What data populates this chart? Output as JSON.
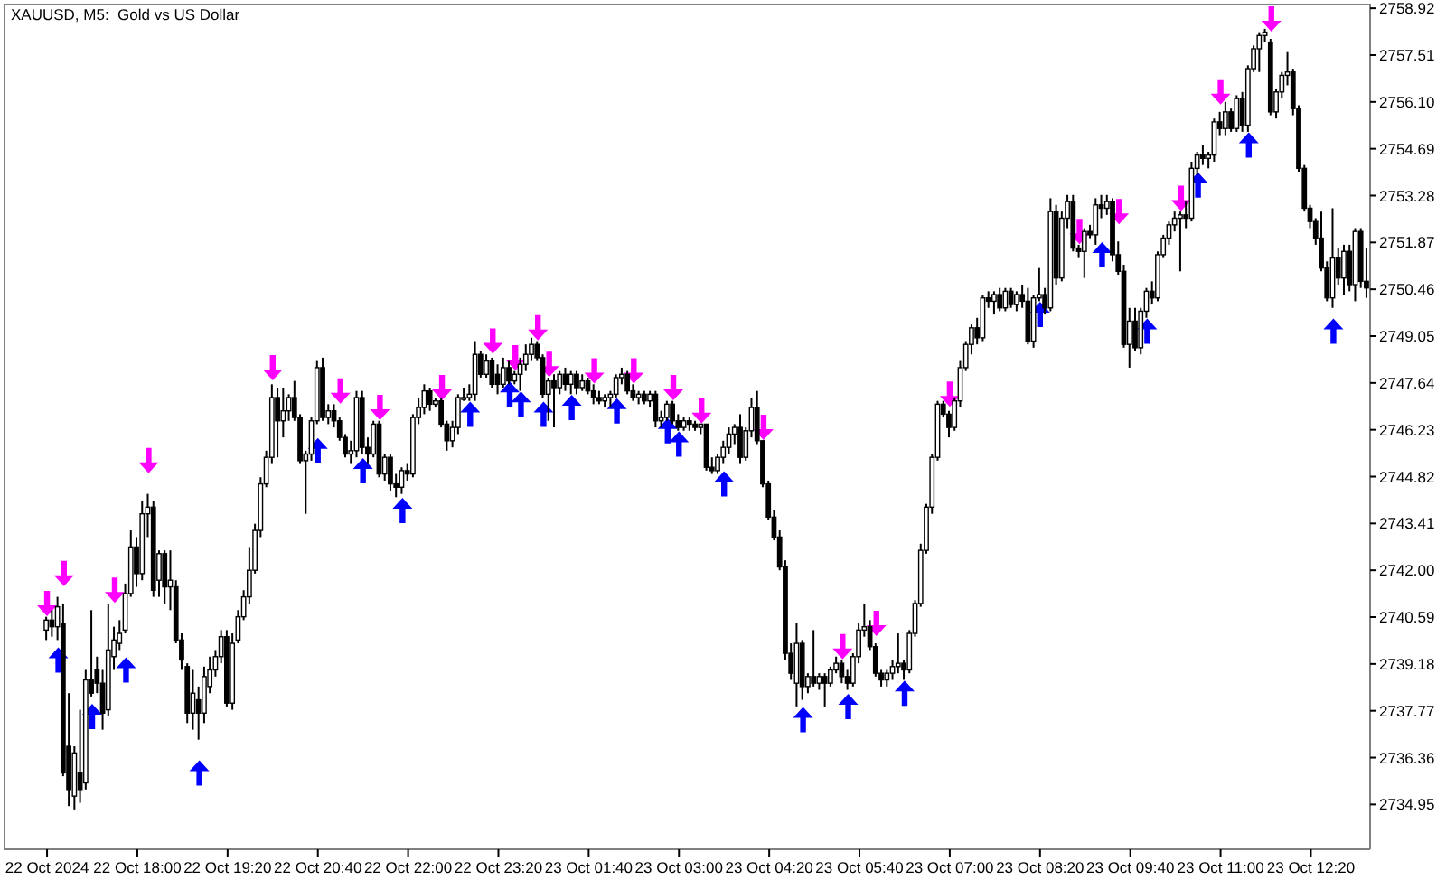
{
  "chart_data": {
    "type": "candlestick",
    "title": "XAUUSD, M5:  Gold vs US Dollar",
    "color": "#000000",
    "categories": [
      "22 Oct 2024",
      null,
      null,
      null,
      null,
      null,
      null,
      null,
      null,
      null,
      null,
      null,
      null,
      null,
      null,
      null,
      "22 Oct 18:00",
      null,
      null,
      null,
      null,
      null,
      null,
      null,
      null,
      null,
      null,
      null,
      null,
      null,
      null,
      null,
      "22 Oct 19:20",
      null,
      null,
      null,
      null,
      null,
      null,
      null,
      null,
      null,
      null,
      null,
      null,
      null,
      null,
      null,
      "22 Oct 20:40",
      null,
      null,
      null,
      null,
      null,
      null,
      null,
      null,
      null,
      null,
      null,
      null,
      null,
      null,
      null,
      "22 Oct 22:00",
      null,
      null,
      null,
      null,
      null,
      null,
      null,
      null,
      null,
      null,
      null,
      null,
      null,
      null,
      null,
      "22 Oct 23:20",
      null,
      null,
      null,
      null,
      null,
      null,
      null,
      null,
      null,
      null,
      null,
      null,
      null,
      null,
      null,
      "23 Oct 01:40",
      null,
      null,
      null,
      null,
      null,
      null,
      null,
      null,
      null,
      null,
      null,
      null,
      null,
      null,
      null,
      "23 Oct 03:00",
      null,
      null,
      null,
      null,
      null,
      null,
      null,
      null,
      null,
      null,
      null,
      null,
      null,
      null,
      null,
      "23 Oct 04:20",
      null,
      null,
      null,
      null,
      null,
      null,
      null,
      null,
      null,
      null,
      null,
      null,
      null,
      null,
      null,
      "23 Oct 05:40",
      null,
      null,
      null,
      null,
      null,
      null,
      null,
      null,
      null,
      null,
      null,
      null,
      null,
      null,
      null,
      "23 Oct 07:00",
      null,
      null,
      null,
      null,
      null,
      null,
      null,
      null,
      null,
      null,
      null,
      null,
      null,
      null,
      null,
      "23 Oct 08:20",
      null,
      null,
      null,
      null,
      null,
      null,
      null,
      null,
      null,
      null,
      null,
      null,
      null,
      null,
      null,
      "23 Oct 09:40",
      null,
      null,
      null,
      null,
      null,
      null,
      null,
      null,
      null,
      null,
      null,
      null,
      null,
      null,
      null,
      "23 Oct 11:00",
      null,
      null,
      null,
      null,
      null,
      null,
      null,
      null,
      null,
      null,
      null,
      null,
      null,
      null,
      null,
      "23 Oct 12:20",
      null,
      null,
      null,
      null,
      null,
      null,
      null,
      null,
      null,
      null
    ],
    "ohlc": [
      [
        2740.2,
        2740.6,
        2739.9,
        2740.5
      ],
      [
        2740.5,
        2740.8,
        2740.0,
        2740.3
      ],
      [
        2740.3,
        2741.2,
        2739.9,
        2740.9
      ],
      [
        2740.4,
        2741.0,
        2735.8,
        2735.9
      ],
      [
        2736.7,
        2738.3,
        2734.9,
        2735.4
      ],
      [
        2735.2,
        2736.7,
        2734.8,
        2736.5
      ],
      [
        2735.9,
        2737.8,
        2735.0,
        2735.4
      ],
      [
        2735.6,
        2739.0,
        2735.4,
        2738.7
      ],
      [
        2738.7,
        2740.8,
        2738.2,
        2738.3
      ],
      [
        2739.0,
        2739.4,
        2738.3,
        2738.6
      ],
      [
        2738.6,
        2739.0,
        2737.2,
        2737.7
      ],
      [
        2737.8,
        2741.0,
        2737.6,
        2739.6
      ],
      [
        2739.4,
        2740.3,
        2739.0,
        2739.9
      ],
      [
        2739.8,
        2740.5,
        2739.6,
        2740.1
      ],
      [
        2740.2,
        2741.6,
        2740.1,
        2741.3
      ],
      [
        2741.3,
        2743.2,
        2741.2,
        2742.7
      ],
      [
        2742.7,
        2743.0,
        2741.5,
        2741.9
      ],
      [
        2741.9,
        2744.1,
        2741.7,
        2743.7
      ],
      [
        2743.7,
        2744.3,
        2743.0,
        2743.9
      ],
      [
        2743.9,
        2744.1,
        2741.2,
        2741.4
      ],
      [
        2741.7,
        2742.6,
        2741.2,
        2742.5
      ],
      [
        2742.5,
        2742.6,
        2741.0,
        2741.5
      ],
      [
        2741.5,
        2742.6,
        2740.8,
        2741.7
      ],
      [
        2741.5,
        2741.7,
        2739.8,
        2739.9
      ],
      [
        2739.9,
        2740.1,
        2739.0,
        2739.3
      ],
      [
        2739.1,
        2739.2,
        2737.4,
        2737.7
      ],
      [
        2737.7,
        2739.0,
        2737.2,
        2738.3
      ],
      [
        2738.1,
        2738.5,
        2736.9,
        2737.7
      ],
      [
        2737.7,
        2739.1,
        2737.4,
        2738.8
      ],
      [
        2738.5,
        2739.4,
        2738.3,
        2739.0
      ],
      [
        2739.0,
        2739.6,
        2738.8,
        2739.4
      ],
      [
        2739.4,
        2740.2,
        2739.2,
        2740.0
      ],
      [
        2740.0,
        2740.2,
        2737.9,
        2738.0
      ],
      [
        2738.0,
        2740.1,
        2737.8,
        2739.8
      ],
      [
        2739.9,
        2740.8,
        2739.8,
        2740.6
      ],
      [
        2740.6,
        2741.4,
        2740.5,
        2741.2
      ],
      [
        2741.2,
        2742.7,
        2741.0,
        2742.0
      ],
      [
        2742.0,
        2743.4,
        2741.9,
        2743.2
      ],
      [
        2743.2,
        2744.8,
        2743.0,
        2744.6
      ],
      [
        2744.6,
        2745.6,
        2744.5,
        2745.4
      ],
      [
        2745.4,
        2747.6,
        2745.2,
        2747.2
      ],
      [
        2747.2,
        2747.5,
        2745.4,
        2746.5
      ],
      [
        2746.5,
        2747.5,
        2746.0,
        2746.8
      ],
      [
        2746.8,
        2747.3,
        2746.5,
        2747.2
      ],
      [
        2747.2,
        2747.7,
        2746.5,
        2746.6
      ],
      [
        2746.6,
        2746.7,
        2745.2,
        2745.3
      ],
      [
        2745.3,
        2745.6,
        2743.7,
        2745.5
      ],
      [
        2745.5,
        2746.6,
        2745.3,
        2746.5
      ],
      [
        2746.5,
        2748.3,
        2746.4,
        2748.1
      ],
      [
        2748.1,
        2748.4,
        2746.5,
        2746.6
      ],
      [
        2746.6,
        2747.0,
        2746.4,
        2746.8
      ],
      [
        2746.8,
        2747.0,
        2746.3,
        2746.5
      ],
      [
        2746.5,
        2746.6,
        2745.9,
        2746.0
      ],
      [
        2746.0,
        2746.1,
        2745.4,
        2745.5
      ],
      [
        2745.5,
        2745.9,
        2745.2,
        2745.6
      ],
      [
        2745.6,
        2747.4,
        2745.4,
        2747.2
      ],
      [
        2747.2,
        2747.4,
        2745.5,
        2745.7
      ],
      [
        2745.7,
        2746.0,
        2745.2,
        2745.5
      ],
      [
        2745.5,
        2746.5,
        2745.4,
        2746.4
      ],
      [
        2746.4,
        2746.5,
        2744.8,
        2744.9
      ],
      [
        2744.9,
        2745.5,
        2744.7,
        2745.4
      ],
      [
        2745.4,
        2745.5,
        2744.4,
        2744.6
      ],
      [
        2744.6,
        2744.9,
        2744.2,
        2744.5
      ],
      [
        2744.5,
        2745.1,
        2744.3,
        2745.0
      ],
      [
        2745.0,
        2745.2,
        2744.7,
        2744.9
      ],
      [
        2744.9,
        2746.7,
        2744.8,
        2746.6
      ],
      [
        2746.6,
        2747.2,
        2746.4,
        2746.9
      ],
      [
        2746.9,
        2747.6,
        2746.7,
        2747.4
      ],
      [
        2747.4,
        2747.5,
        2746.8,
        2747.0
      ],
      [
        2747.0,
        2747.2,
        2746.9,
        2747.1
      ],
      [
        2747.1,
        2747.2,
        2746.3,
        2746.4
      ],
      [
        2746.4,
        2746.5,
        2745.6,
        2745.9
      ],
      [
        2745.9,
        2746.5,
        2745.7,
        2746.3
      ],
      [
        2746.3,
        2747.3,
        2746.1,
        2747.2
      ],
      [
        2747.2,
        2747.5,
        2747.1,
        2747.2
      ],
      [
        2747.2,
        2747.6,
        2747.1,
        2747.3
      ],
      [
        2747.3,
        2748.9,
        2747.1,
        2748.5
      ],
      [
        2748.5,
        2748.6,
        2747.8,
        2747.9
      ],
      [
        2747.9,
        2748.5,
        2747.8,
        2748.3
      ],
      [
        2748.3,
        2748.4,
        2747.5,
        2747.6
      ],
      [
        2747.9,
        2748.2,
        2747.3,
        2747.6
      ],
      [
        2747.6,
        2748.4,
        2747.5,
        2748.1
      ],
      [
        2748.1,
        2748.3,
        2747.6,
        2747.7
      ],
      [
        2747.7,
        2748.0,
        2747.6,
        2747.9
      ],
      [
        2747.9,
        2748.4,
        2747.4,
        2748.2
      ],
      [
        2748.2,
        2748.8,
        2748.0,
        2748.5
      ],
      [
        2748.5,
        2749.0,
        2748.3,
        2748.8
      ],
      [
        2748.8,
        2748.9,
        2748.3,
        2748.4
      ],
      [
        2748.4,
        2748.5,
        2747.2,
        2747.3
      ],
      [
        2747.3,
        2747.8,
        2746.5,
        2747.7
      ],
      [
        2747.7,
        2747.9,
        2746.3,
        2747.5
      ],
      [
        2747.5,
        2748.0,
        2747.3,
        2747.9
      ],
      [
        2747.9,
        2748.1,
        2747.4,
        2747.6
      ],
      [
        2747.6,
        2748.0,
        2747.3,
        2747.9
      ],
      [
        2747.9,
        2748.0,
        2747.3,
        2747.5
      ],
      [
        2747.5,
        2747.9,
        2747.4,
        2747.7
      ],
      [
        2747.7,
        2747.8,
        2747.3,
        2747.4
      ],
      [
        2747.4,
        2747.6,
        2747.0,
        2747.2
      ],
      [
        2747.2,
        2747.4,
        2747.0,
        2747.1
      ],
      [
        2747.1,
        2747.3,
        2746.9,
        2747.2
      ],
      [
        2747.2,
        2747.4,
        2746.9,
        2747.3
      ],
      [
        2747.3,
        2747.9,
        2747.2,
        2747.8
      ],
      [
        2747.8,
        2748.1,
        2747.6,
        2747.9
      ],
      [
        2747.9,
        2748.0,
        2747.3,
        2747.4
      ],
      [
        2747.4,
        2747.6,
        2747.1,
        2747.2
      ],
      [
        2747.2,
        2747.4,
        2747.0,
        2747.3
      ],
      [
        2747.3,
        2747.4,
        2747.0,
        2747.1
      ],
      [
        2747.1,
        2747.4,
        2746.9,
        2747.3
      ],
      [
        2747.3,
        2747.4,
        2746.3,
        2746.5
      ],
      [
        2746.5,
        2746.8,
        2746.3,
        2746.6
      ],
      [
        2746.6,
        2747.1,
        2746.5,
        2747.0
      ],
      [
        2747.0,
        2747.1,
        2746.4,
        2746.5
      ],
      [
        2746.5,
        2746.7,
        2746.2,
        2746.3
      ],
      [
        2746.3,
        2746.6,
        2746.2,
        2746.5
      ],
      [
        2746.5,
        2746.6,
        2746.2,
        2746.4
      ],
      [
        2746.4,
        2746.5,
        2746.2,
        2746.3
      ],
      [
        2746.3,
        2746.4,
        2746.1,
        2746.4
      ],
      [
        2746.4,
        2746.4,
        2745.0,
        2745.1
      ],
      [
        2745.1,
        2745.4,
        2744.9,
        2745.0
      ],
      [
        2745.0,
        2745.5,
        2744.9,
        2745.4
      ],
      [
        2745.4,
        2745.9,
        2745.2,
        2745.7
      ],
      [
        2745.7,
        2746.3,
        2745.5,
        2746.1
      ],
      [
        2746.1,
        2746.4,
        2745.8,
        2746.3
      ],
      [
        2746.3,
        2746.7,
        2745.2,
        2745.4
      ],
      [
        2745.4,
        2746.3,
        2745.3,
        2746.2
      ],
      [
        2746.2,
        2747.2,
        2746.0,
        2746.9
      ],
      [
        2746.9,
        2747.4,
        2745.8,
        2745.9
      ],
      [
        2745.9,
        2745.9,
        2744.5,
        2744.6
      ],
      [
        2744.6,
        2744.7,
        2743.5,
        2743.6
      ],
      [
        2743.6,
        2743.8,
        2742.9,
        2743.0
      ],
      [
        2743.0,
        2743.2,
        2742.0,
        2742.1
      ],
      [
        2742.1,
        2742.3,
        2739.3,
        2739.5
      ],
      [
        2739.5,
        2739.8,
        2738.7,
        2738.9
      ],
      [
        2738.6,
        2740.4,
        2737.9,
        2739.8
      ],
      [
        2739.8,
        2739.9,
        2738.1,
        2738.5
      ],
      [
        2738.5,
        2738.9,
        2738.3,
        2738.8
      ],
      [
        2738.8,
        2740.2,
        2738.5,
        2738.6
      ],
      [
        2738.6,
        2738.9,
        2738.4,
        2738.8
      ],
      [
        2738.8,
        2738.9,
        2737.9,
        2738.6
      ],
      [
        2738.6,
        2739.1,
        2738.5,
        2739.0
      ],
      [
        2739.0,
        2739.4,
        2738.9,
        2739.2
      ],
      [
        2739.2,
        2739.3,
        2738.6,
        2738.8
      ],
      [
        2738.8,
        2739.0,
        2738.4,
        2738.6
      ],
      [
        2738.6,
        2739.5,
        2738.5,
        2739.4
      ],
      [
        2739.4,
        2740.4,
        2739.2,
        2740.2
      ],
      [
        2740.2,
        2741.0,
        2740.0,
        2740.3
      ],
      [
        2740.3,
        2740.5,
        2739.6,
        2739.7
      ],
      [
        2739.7,
        2739.8,
        2738.8,
        2738.9
      ],
      [
        2738.9,
        2739.0,
        2738.5,
        2738.7
      ],
      [
        2738.7,
        2739.0,
        2738.5,
        2738.9
      ],
      [
        2738.9,
        2739.3,
        2738.7,
        2739.1
      ],
      [
        2739.1,
        2740.1,
        2738.9,
        2739.2
      ],
      [
        2739.2,
        2739.3,
        2738.7,
        2739.0
      ],
      [
        2739.0,
        2740.2,
        2738.9,
        2740.1
      ],
      [
        2740.1,
        2741.1,
        2740.0,
        2741.0
      ],
      [
        2741.0,
        2742.8,
        2740.9,
        2742.6
      ],
      [
        2742.6,
        2744.0,
        2742.5,
        2743.9
      ],
      [
        2743.9,
        2745.5,
        2743.7,
        2745.4
      ],
      [
        2745.4,
        2747.1,
        2745.3,
        2747.0
      ],
      [
        2747.0,
        2747.1,
        2746.6,
        2746.7
      ],
      [
        2746.7,
        2746.8,
        2746.0,
        2746.3
      ],
      [
        2746.3,
        2747.2,
        2746.2,
        2747.1
      ],
      [
        2747.1,
        2748.3,
        2746.9,
        2748.1
      ],
      [
        2748.1,
        2748.9,
        2748.0,
        2748.8
      ],
      [
        2748.8,
        2749.4,
        2748.5,
        2749.3
      ],
      [
        2749.3,
        2749.6,
        2748.8,
        2749.0
      ],
      [
        2749.0,
        2750.3,
        2748.9,
        2750.2
      ],
      [
        2750.2,
        2750.4,
        2749.9,
        2750.1
      ],
      [
        2750.1,
        2750.4,
        2749.7,
        2750.3
      ],
      [
        2750.3,
        2750.5,
        2749.8,
        2749.9
      ],
      [
        2749.9,
        2750.5,
        2749.8,
        2750.4
      ],
      [
        2750.4,
        2750.5,
        2749.9,
        2750.0
      ],
      [
        2750.0,
        2750.4,
        2749.8,
        2750.3
      ],
      [
        2750.3,
        2750.6,
        2749.9,
        2750.1
      ],
      [
        2750.1,
        2750.5,
        2748.8,
        2748.9
      ],
      [
        2748.9,
        2750.3,
        2748.7,
        2750.2
      ],
      [
        2750.2,
        2751.1,
        2750.1,
        2750.3
      ],
      [
        2750.3,
        2750.5,
        2749.7,
        2749.9
      ],
      [
        2749.9,
        2753.2,
        2749.8,
        2752.8
      ],
      [
        2752.8,
        2753.0,
        2750.6,
        2750.8
      ],
      [
        2750.8,
        2752.8,
        2750.7,
        2752.6
      ],
      [
        2752.6,
        2753.3,
        2752.3,
        2753.1
      ],
      [
        2753.1,
        2753.3,
        2751.6,
        2751.7
      ],
      [
        2751.7,
        2751.8,
        2751.4,
        2751.6
      ],
      [
        2751.6,
        2752.3,
        2750.8,
        2752.2
      ],
      [
        2752.2,
        2752.4,
        2752.0,
        2752.1
      ],
      [
        2752.1,
        2753.2,
        2751.8,
        2753.0
      ],
      [
        2753.0,
        2753.3,
        2752.6,
        2752.9
      ],
      [
        2752.9,
        2753.3,
        2752.7,
        2753.1
      ],
      [
        2753.1,
        2753.2,
        2751.3,
        2751.5
      ],
      [
        2751.5,
        2751.9,
        2750.9,
        2751.0
      ],
      [
        2751.0,
        2751.2,
        2748.7,
        2748.8
      ],
      [
        2748.8,
        2749.9,
        2748.1,
        2749.5
      ],
      [
        2749.5,
        2749.9,
        2748.6,
        2748.7
      ],
      [
        2748.7,
        2749.9,
        2748.5,
        2749.8
      ],
      [
        2749.8,
        2750.5,
        2749.6,
        2750.4
      ],
      [
        2750.4,
        2750.7,
        2750.0,
        2750.2
      ],
      [
        2750.2,
        2751.6,
        2750.1,
        2751.5
      ],
      [
        2751.5,
        2752.1,
        2751.4,
        2752.0
      ],
      [
        2752.0,
        2752.5,
        2751.8,
        2752.4
      ],
      [
        2752.4,
        2752.8,
        2752.2,
        2752.6
      ],
      [
        2752.6,
        2752.8,
        2751.0,
        2752.7
      ],
      [
        2752.7,
        2753.1,
        2752.3,
        2752.6
      ],
      [
        2752.6,
        2754.3,
        2752.5,
        2754.1
      ],
      [
        2754.1,
        2754.6,
        2753.9,
        2754.5
      ],
      [
        2754.5,
        2754.8,
        2754.2,
        2754.4
      ],
      [
        2754.4,
        2754.6,
        2754.1,
        2754.5
      ],
      [
        2754.5,
        2755.6,
        2754.3,
        2755.5
      ],
      [
        2755.5,
        2755.8,
        2755.1,
        2755.3
      ],
      [
        2755.3,
        2756.1,
        2755.1,
        2755.8
      ],
      [
        2755.8,
        2755.9,
        2755.2,
        2755.3
      ],
      [
        2755.3,
        2756.3,
        2755.2,
        2756.2
      ],
      [
        2756.2,
        2756.4,
        2755.2,
        2755.4
      ],
      [
        2755.4,
        2757.2,
        2755.2,
        2757.1
      ],
      [
        2757.1,
        2757.8,
        2757.0,
        2757.7
      ],
      [
        2757.7,
        2758.2,
        2757.0,
        2758.1
      ],
      [
        2758.1,
        2758.3,
        2757.9,
        2758.2
      ],
      [
        2757.9,
        2758.0,
        2755.7,
        2755.8
      ],
      [
        2755.8,
        2756.5,
        2755.6,
        2756.4
      ],
      [
        2756.4,
        2757.0,
        2756.2,
        2756.9
      ],
      [
        2756.9,
        2757.6,
        2756.6,
        2757.0
      ],
      [
        2757.0,
        2757.1,
        2755.7,
        2755.9
      ],
      [
        2755.9,
        2756.0,
        2754.0,
        2754.1
      ],
      [
        2754.1,
        2754.2,
        2752.8,
        2752.9
      ],
      [
        2752.9,
        2753.0,
        2752.3,
        2752.5
      ],
      [
        2752.5,
        2752.6,
        2751.8,
        2752.0
      ],
      [
        2752.0,
        2752.8,
        2751.0,
        2751.1
      ],
      [
        2751.1,
        2751.3,
        2750.1,
        2750.2
      ],
      [
        2750.2,
        2752.9,
        2749.9,
        2751.4
      ],
      [
        2751.4,
        2751.7,
        2750.6,
        2750.8
      ],
      [
        2750.8,
        2751.8,
        2750.3,
        2751.6
      ],
      [
        2751.6,
        2751.8,
        2750.4,
        2750.6
      ],
      [
        2750.6,
        2752.3,
        2750.1,
        2752.2
      ],
      [
        2752.2,
        2752.3,
        2750.5,
        2750.7
      ],
      [
        2750.7,
        2751.7,
        2750.2,
        2750.5
      ]
    ],
    "series": [
      {
        "type": "scatter",
        "color": "#0000ff",
        "marker": "triangle",
        "values": [
          null,
          null,
          2739.3,
          null,
          null,
          null,
          null,
          null,
          2737.6,
          null,
          null,
          null,
          null,
          null,
          2739.0,
          null,
          null,
          null,
          null,
          null,
          null,
          null,
          null,
          null,
          null,
          null,
          null,
          2735.9,
          null,
          null,
          null,
          null,
          null,
          null,
          null,
          null,
          null,
          null,
          null,
          null,
          null,
          null,
          null,
          null,
          null,
          null,
          null,
          null,
          2745.6,
          null,
          null,
          null,
          null,
          null,
          null,
          null,
          2745.0,
          null,
          null,
          null,
          null,
          null,
          null,
          2743.8,
          null,
          null,
          null,
          null,
          null,
          null,
          null,
          null,
          null,
          null,
          null,
          2746.7,
          null,
          null,
          null,
          null,
          null,
          null,
          2747.3,
          null,
          2747.0,
          null,
          null,
          null,
          2746.7,
          null,
          null,
          null,
          null,
          2746.9,
          null,
          null,
          null,
          null,
          null,
          null,
          null,
          2746.8,
          null,
          null,
          null,
          null,
          null,
          null,
          null,
          null,
          2746.2,
          null,
          2745.8,
          null,
          null,
          null,
          null,
          null,
          null,
          null,
          2744.6,
          null,
          null,
          null,
          null,
          null,
          null,
          null,
          null,
          null,
          null,
          null,
          null,
          null,
          2737.5,
          null,
          null,
          null,
          null,
          null,
          null,
          null,
          2737.9,
          null,
          null,
          null,
          null,
          null,
          null,
          null,
          null,
          null,
          2738.3,
          null,
          null,
          null,
          null,
          null,
          null,
          null,
          null,
          null,
          null,
          null,
          null,
          null,
          null,
          null,
          null,
          null,
          null,
          null,
          null,
          null,
          null,
          null,
          2749.7,
          null,
          null,
          null,
          null,
          null,
          null,
          null,
          null,
          null,
          null,
          2751.5,
          null,
          null,
          null,
          null,
          null,
          null,
          null,
          2749.2,
          null,
          null,
          null,
          null,
          null,
          null,
          null,
          null,
          2753.6,
          null,
          null,
          null,
          null,
          null,
          null,
          null,
          null,
          2754.8,
          null,
          null,
          null,
          null,
          null,
          null,
          null,
          null,
          null,
          null,
          null,
          null,
          null,
          null,
          2749.2,
          null,
          null,
          null,
          null,
          null,
          null
        ]
      },
      {
        "type": "scatter",
        "color": "#ff00ff",
        "marker": "triangle",
        "values": [
          2741.0,
          null,
          null,
          2741.9,
          null,
          null,
          null,
          null,
          null,
          null,
          null,
          null,
          2741.4,
          null,
          null,
          null,
          null,
          null,
          2745.3,
          null,
          null,
          null,
          null,
          null,
          null,
          null,
          null,
          null,
          null,
          null,
          null,
          null,
          null,
          null,
          null,
          null,
          null,
          null,
          null,
          null,
          2748.1,
          null,
          null,
          null,
          null,
          null,
          null,
          null,
          null,
          null,
          null,
          null,
          2747.4,
          null,
          null,
          null,
          null,
          null,
          null,
          2746.9,
          null,
          null,
          null,
          null,
          null,
          null,
          null,
          null,
          null,
          null,
          2747.5,
          null,
          null,
          null,
          null,
          null,
          null,
          null,
          null,
          2748.9,
          null,
          null,
          null,
          2748.4,
          null,
          null,
          null,
          2749.3,
          null,
          2748.2,
          null,
          null,
          null,
          null,
          null,
          null,
          null,
          2748.0,
          null,
          null,
          null,
          null,
          null,
          null,
          2748.0,
          null,
          null,
          null,
          null,
          null,
          null,
          2747.5,
          null,
          null,
          null,
          null,
          2746.8,
          null,
          null,
          null,
          null,
          null,
          null,
          null,
          null,
          null,
          null,
          2746.3,
          null,
          null,
          null,
          null,
          null,
          null,
          null,
          null,
          null,
          null,
          null,
          null,
          null,
          2739.7,
          null,
          null,
          null,
          null,
          null,
          2740.4,
          null,
          null,
          null,
          null,
          null,
          null,
          null,
          null,
          null,
          null,
          null,
          null,
          2747.3,
          null,
          null,
          null,
          null,
          null,
          null,
          null,
          null,
          null,
          null,
          null,
          null,
          null,
          null,
          null,
          null,
          null,
          null,
          null,
          null,
          null,
          null,
          2752.2,
          null,
          null,
          null,
          null,
          null,
          null,
          2752.8,
          null,
          null,
          null,
          null,
          null,
          null,
          null,
          null,
          null,
          null,
          2753.2,
          null,
          null,
          null,
          null,
          null,
          null,
          2756.4,
          null,
          null,
          null,
          null,
          null,
          null,
          null,
          null,
          2758.6,
          null,
          null,
          null,
          null,
          null,
          null,
          null,
          null,
          null,
          null,
          null,
          null,
          null,
          null,
          null,
          null,
          null
        ]
      }
    ],
    "ylim": [
      2733.6,
      2759.06
    ],
    "yticks": [
      2734.95,
      2736.36,
      2737.77,
      2739.18,
      2740.59,
      {
        "value": 2742,
        "label": "2742.00"
      },
      2743.41,
      2744.82,
      2746.23,
      2747.64,
      2749.05,
      2750.46,
      2751.87,
      2753.28,
      2754.69,
      {
        "value": 2756.1,
        "label": "2756.10"
      },
      2757.51,
      2758.92
    ]
  }
}
